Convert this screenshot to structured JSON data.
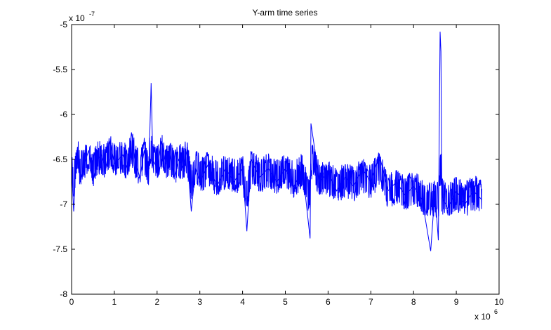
{
  "chart_data": {
    "type": "line",
    "title": "Y-arm time series",
    "xlabel": "",
    "ylabel": "",
    "x_multiplier": {
      "base": "x 10",
      "exponent": "6"
    },
    "y_multiplier": {
      "base": "x 10",
      "exponent": "-7"
    },
    "xlim": [
      0,
      10
    ],
    "ylim": [
      -8,
      -5
    ],
    "x_ticks": [
      0,
      1,
      2,
      3,
      4,
      5,
      6,
      7,
      8,
      9,
      10
    ],
    "x_tick_labels": [
      "0",
      "1",
      "2",
      "3",
      "4",
      "5",
      "6",
      "7",
      "8",
      "9",
      "10"
    ],
    "y_ticks": [
      -8,
      -7.5,
      -7,
      -6.5,
      -6,
      -5.5,
      -5
    ],
    "y_tick_labels": [
      "-8",
      "-7.5",
      "-7",
      "-6.5",
      "-6",
      "-5.5",
      "-5"
    ],
    "grid": false,
    "line_color": "#0000ff",
    "series": [
      {
        "name": "",
        "x": [
          0.0,
          0.05,
          0.1,
          0.15,
          0.2,
          0.3,
          0.4,
          0.5,
          0.6,
          0.7,
          0.8,
          0.9,
          1.0,
          1.1,
          1.2,
          1.3,
          1.4,
          1.5,
          1.6,
          1.7,
          1.8,
          1.86,
          1.9,
          2.0,
          2.1,
          2.2,
          2.3,
          2.4,
          2.5,
          2.6,
          2.7,
          2.8,
          2.9,
          3.0,
          3.2,
          3.4,
          3.6,
          3.8,
          4.0,
          4.1,
          4.2,
          4.4,
          4.6,
          4.8,
          5.0,
          5.2,
          5.4,
          5.58,
          5.6,
          5.8,
          6.0,
          6.2,
          6.4,
          6.6,
          6.8,
          7.0,
          7.2,
          7.4,
          7.6,
          7.8,
          8.0,
          8.2,
          8.4,
          8.5,
          8.58,
          8.62,
          8.64,
          8.66,
          8.7,
          8.8,
          9.0,
          9.2,
          9.4,
          9.6
        ],
        "y": [
          -6.6,
          -7.08,
          -6.55,
          -6.4,
          -6.75,
          -6.55,
          -6.4,
          -6.75,
          -6.5,
          -6.45,
          -6.6,
          -6.3,
          -6.55,
          -6.5,
          -6.45,
          -6.6,
          -6.2,
          -6.55,
          -6.7,
          -6.4,
          -6.75,
          -5.65,
          -6.5,
          -6.6,
          -6.3,
          -6.55,
          -6.45,
          -6.7,
          -6.5,
          -6.6,
          -6.4,
          -7.08,
          -6.6,
          -6.75,
          -6.55,
          -6.8,
          -6.6,
          -6.75,
          -6.6,
          -7.3,
          -6.5,
          -6.7,
          -6.6,
          -6.75,
          -6.6,
          -6.8,
          -6.6,
          -7.38,
          -6.1,
          -6.75,
          -6.65,
          -6.85,
          -6.7,
          -6.8,
          -6.6,
          -6.75,
          -6.45,
          -6.85,
          -6.75,
          -6.9,
          -6.8,
          -6.95,
          -7.52,
          -6.85,
          -7.4,
          -5.08,
          -5.3,
          -6.9,
          -6.95,
          -7.05,
          -6.85,
          -7.0,
          -6.85,
          -6.95
        ]
      }
    ]
  }
}
